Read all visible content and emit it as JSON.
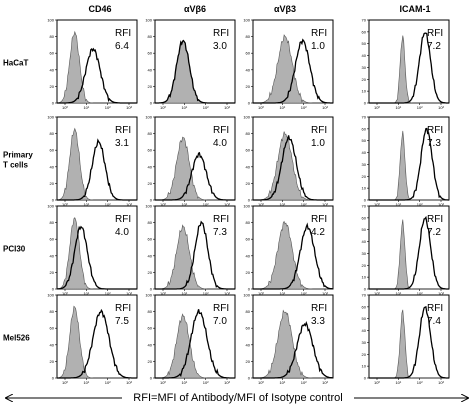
{
  "chart_data": {
    "type": "histogram-grid",
    "columns": [
      "CD46",
      "αVβ6",
      "αVβ3",
      "ICAM-1"
    ],
    "rows": [
      {
        "label": [
          "HaCaT"
        ]
      },
      {
        "label": [
          "Primary",
          "T cells"
        ]
      },
      {
        "label": [
          "PCI30"
        ]
      },
      {
        "label": [
          "Mel526"
        ]
      }
    ],
    "rfi_label": "RFI",
    "rfi_values": [
      [
        "6.4",
        "3.0",
        "1.0",
        "7.2"
      ],
      [
        "3.1",
        "4.0",
        "1.0",
        "7.3"
      ],
      [
        "4.0",
        "7.3",
        "4.2",
        "7.2"
      ],
      [
        "7.5",
        "7.0",
        "3.3",
        "7.4"
      ]
    ],
    "x_ticks": [
      "10⁰",
      "10¹",
      "10²",
      "10³"
    ],
    "y_ticks_left": [
      "0",
      "20",
      "40",
      "60",
      "80",
      "100"
    ],
    "y_ticks_icam": [
      "0",
      "10",
      "20",
      "30",
      "40",
      "50",
      "60",
      "70"
    ],
    "series": [
      {
        "name": "isotype control",
        "style": "grey filled histogram"
      },
      {
        "name": "antibody",
        "style": "black line histogram"
      }
    ],
    "footer": "RFI=MFI of Antibody/MFI of Isotype control"
  }
}
